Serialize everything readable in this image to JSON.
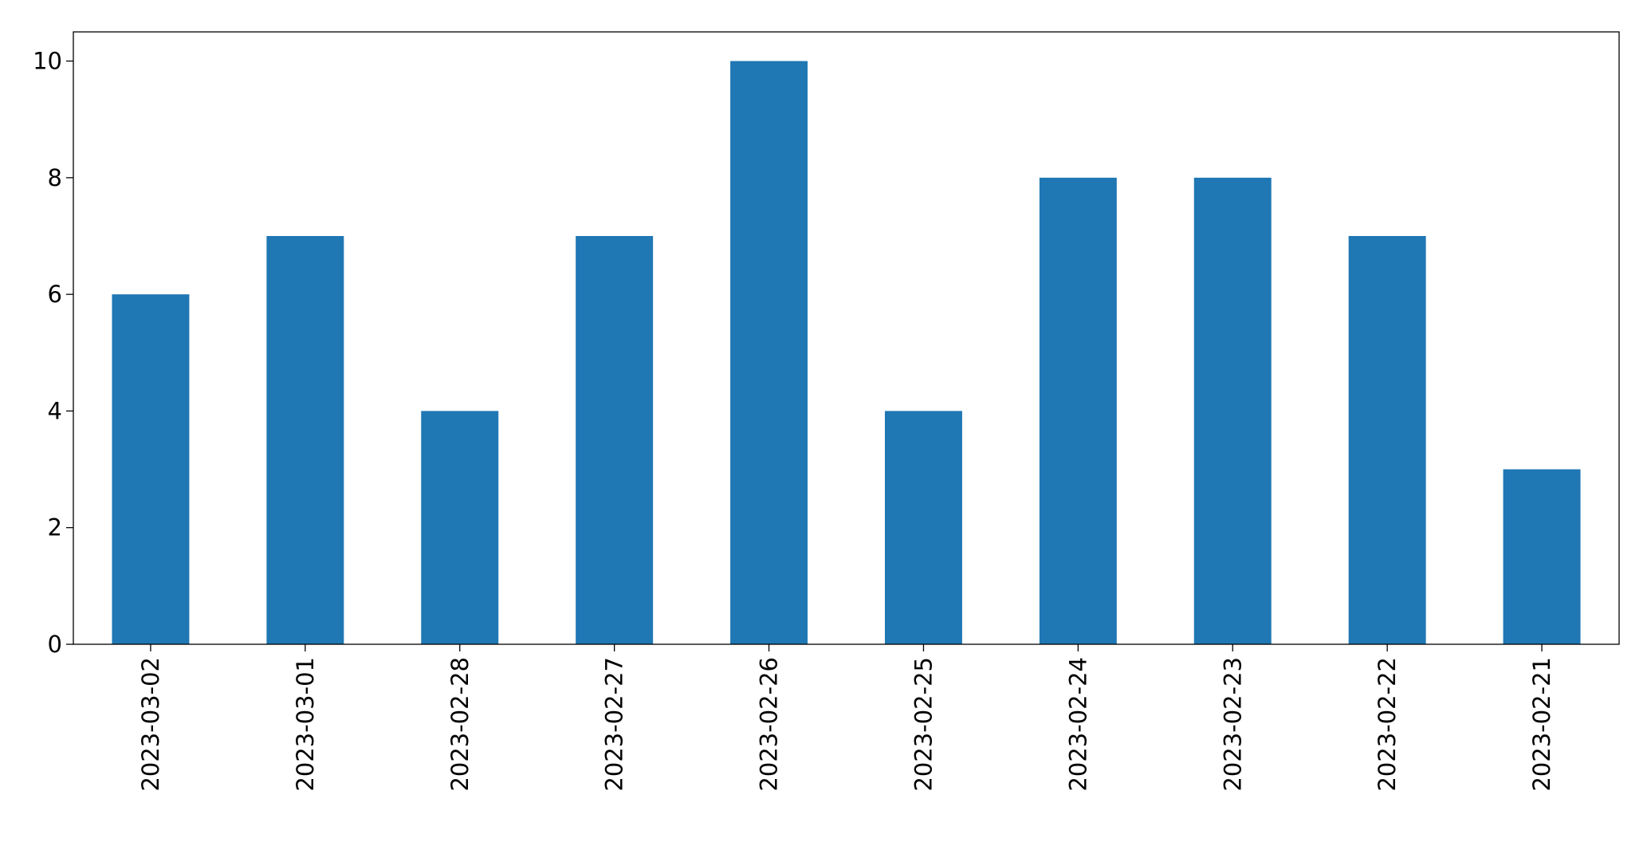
{
  "chart_data": {
    "type": "bar",
    "categories": [
      "2023-03-02",
      "2023-03-01",
      "2023-02-28",
      "2023-02-27",
      "2023-02-26",
      "2023-02-25",
      "2023-02-24",
      "2023-02-23",
      "2023-02-22",
      "2023-02-21"
    ],
    "values": [
      6,
      7,
      4,
      7,
      10,
      4,
      8,
      8,
      7,
      3
    ],
    "color": "#1f77b4",
    "ylim": [
      0,
      10.5
    ],
    "yticks": [
      0,
      2,
      4,
      6,
      8,
      10
    ],
    "grid": false
  }
}
